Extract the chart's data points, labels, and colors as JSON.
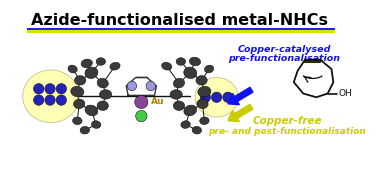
{
  "title": "Azide-functionalised metal-NHCs",
  "title_color": "#000000",
  "title_fontsize": 11.5,
  "underline_color_blue": "#2222DD",
  "underline_color_yellow": "#DDDD00",
  "bg_color": "#FFFFFF",
  "blue_arrow_text_1": "Copper-catalysed",
  "blue_arrow_text_2": "pre-functionalisation",
  "blue_arrow_color": "#1111EE",
  "yellow_arrow_text_1": "Copper-free",
  "yellow_arrow_text_2": "pre- and post-functionalisation",
  "yellow_arrow_color": "#CCCC00",
  "au_label_color": "#AA8800",
  "au_label": "Au",
  "blob_fill": "#FFFFAA",
  "azide_dot_color": "#2222BB",
  "mol_dark": "#2A2A2A",
  "mol_mid": "#555555",
  "mol_light": "#888888",
  "green_atom_color": "#44CC44",
  "purple_atom_color": "#884499",
  "ring_n_color": "#9999DD",
  "oh_color": "#111111"
}
